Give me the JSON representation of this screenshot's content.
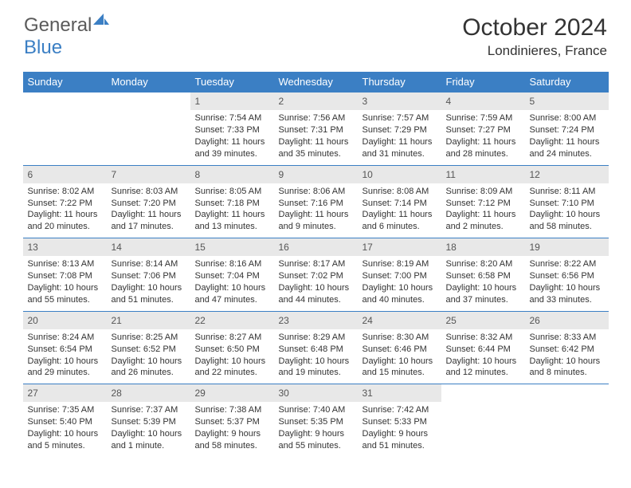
{
  "logo": {
    "part1": "General",
    "part2": "Blue"
  },
  "title": "October 2024",
  "location": "Londinieres, France",
  "colors": {
    "header_bg": "#3b7fc4",
    "header_text": "#ffffff",
    "daynum_bg": "#e8e8e8",
    "daynum_text": "#555555",
    "body_text": "#333333",
    "border": "#3b7fc4",
    "logo_gray": "#5a5a5a",
    "logo_blue": "#3b7fc4"
  },
  "day_headers": [
    "Sunday",
    "Monday",
    "Tuesday",
    "Wednesday",
    "Thursday",
    "Friday",
    "Saturday"
  ],
  "weeks": [
    [
      {
        "empty": true
      },
      {
        "empty": true
      },
      {
        "num": "1",
        "sunrise": "Sunrise: 7:54 AM",
        "sunset": "Sunset: 7:33 PM",
        "daylight1": "Daylight: 11 hours",
        "daylight2": "and 39 minutes."
      },
      {
        "num": "2",
        "sunrise": "Sunrise: 7:56 AM",
        "sunset": "Sunset: 7:31 PM",
        "daylight1": "Daylight: 11 hours",
        "daylight2": "and 35 minutes."
      },
      {
        "num": "3",
        "sunrise": "Sunrise: 7:57 AM",
        "sunset": "Sunset: 7:29 PM",
        "daylight1": "Daylight: 11 hours",
        "daylight2": "and 31 minutes."
      },
      {
        "num": "4",
        "sunrise": "Sunrise: 7:59 AM",
        "sunset": "Sunset: 7:27 PM",
        "daylight1": "Daylight: 11 hours",
        "daylight2": "and 28 minutes."
      },
      {
        "num": "5",
        "sunrise": "Sunrise: 8:00 AM",
        "sunset": "Sunset: 7:24 PM",
        "daylight1": "Daylight: 11 hours",
        "daylight2": "and 24 minutes."
      }
    ],
    [
      {
        "num": "6",
        "sunrise": "Sunrise: 8:02 AM",
        "sunset": "Sunset: 7:22 PM",
        "daylight1": "Daylight: 11 hours",
        "daylight2": "and 20 minutes."
      },
      {
        "num": "7",
        "sunrise": "Sunrise: 8:03 AM",
        "sunset": "Sunset: 7:20 PM",
        "daylight1": "Daylight: 11 hours",
        "daylight2": "and 17 minutes."
      },
      {
        "num": "8",
        "sunrise": "Sunrise: 8:05 AM",
        "sunset": "Sunset: 7:18 PM",
        "daylight1": "Daylight: 11 hours",
        "daylight2": "and 13 minutes."
      },
      {
        "num": "9",
        "sunrise": "Sunrise: 8:06 AM",
        "sunset": "Sunset: 7:16 PM",
        "daylight1": "Daylight: 11 hours",
        "daylight2": "and 9 minutes."
      },
      {
        "num": "10",
        "sunrise": "Sunrise: 8:08 AM",
        "sunset": "Sunset: 7:14 PM",
        "daylight1": "Daylight: 11 hours",
        "daylight2": "and 6 minutes."
      },
      {
        "num": "11",
        "sunrise": "Sunrise: 8:09 AM",
        "sunset": "Sunset: 7:12 PM",
        "daylight1": "Daylight: 11 hours",
        "daylight2": "and 2 minutes."
      },
      {
        "num": "12",
        "sunrise": "Sunrise: 8:11 AM",
        "sunset": "Sunset: 7:10 PM",
        "daylight1": "Daylight: 10 hours",
        "daylight2": "and 58 minutes."
      }
    ],
    [
      {
        "num": "13",
        "sunrise": "Sunrise: 8:13 AM",
        "sunset": "Sunset: 7:08 PM",
        "daylight1": "Daylight: 10 hours",
        "daylight2": "and 55 minutes."
      },
      {
        "num": "14",
        "sunrise": "Sunrise: 8:14 AM",
        "sunset": "Sunset: 7:06 PM",
        "daylight1": "Daylight: 10 hours",
        "daylight2": "and 51 minutes."
      },
      {
        "num": "15",
        "sunrise": "Sunrise: 8:16 AM",
        "sunset": "Sunset: 7:04 PM",
        "daylight1": "Daylight: 10 hours",
        "daylight2": "and 47 minutes."
      },
      {
        "num": "16",
        "sunrise": "Sunrise: 8:17 AM",
        "sunset": "Sunset: 7:02 PM",
        "daylight1": "Daylight: 10 hours",
        "daylight2": "and 44 minutes."
      },
      {
        "num": "17",
        "sunrise": "Sunrise: 8:19 AM",
        "sunset": "Sunset: 7:00 PM",
        "daylight1": "Daylight: 10 hours",
        "daylight2": "and 40 minutes."
      },
      {
        "num": "18",
        "sunrise": "Sunrise: 8:20 AM",
        "sunset": "Sunset: 6:58 PM",
        "daylight1": "Daylight: 10 hours",
        "daylight2": "and 37 minutes."
      },
      {
        "num": "19",
        "sunrise": "Sunrise: 8:22 AM",
        "sunset": "Sunset: 6:56 PM",
        "daylight1": "Daylight: 10 hours",
        "daylight2": "and 33 minutes."
      }
    ],
    [
      {
        "num": "20",
        "sunrise": "Sunrise: 8:24 AM",
        "sunset": "Sunset: 6:54 PM",
        "daylight1": "Daylight: 10 hours",
        "daylight2": "and 29 minutes."
      },
      {
        "num": "21",
        "sunrise": "Sunrise: 8:25 AM",
        "sunset": "Sunset: 6:52 PM",
        "daylight1": "Daylight: 10 hours",
        "daylight2": "and 26 minutes."
      },
      {
        "num": "22",
        "sunrise": "Sunrise: 8:27 AM",
        "sunset": "Sunset: 6:50 PM",
        "daylight1": "Daylight: 10 hours",
        "daylight2": "and 22 minutes."
      },
      {
        "num": "23",
        "sunrise": "Sunrise: 8:29 AM",
        "sunset": "Sunset: 6:48 PM",
        "daylight1": "Daylight: 10 hours",
        "daylight2": "and 19 minutes."
      },
      {
        "num": "24",
        "sunrise": "Sunrise: 8:30 AM",
        "sunset": "Sunset: 6:46 PM",
        "daylight1": "Daylight: 10 hours",
        "daylight2": "and 15 minutes."
      },
      {
        "num": "25",
        "sunrise": "Sunrise: 8:32 AM",
        "sunset": "Sunset: 6:44 PM",
        "daylight1": "Daylight: 10 hours",
        "daylight2": "and 12 minutes."
      },
      {
        "num": "26",
        "sunrise": "Sunrise: 8:33 AM",
        "sunset": "Sunset: 6:42 PM",
        "daylight1": "Daylight: 10 hours",
        "daylight2": "and 8 minutes."
      }
    ],
    [
      {
        "num": "27",
        "sunrise": "Sunrise: 7:35 AM",
        "sunset": "Sunset: 5:40 PM",
        "daylight1": "Daylight: 10 hours",
        "daylight2": "and 5 minutes."
      },
      {
        "num": "28",
        "sunrise": "Sunrise: 7:37 AM",
        "sunset": "Sunset: 5:39 PM",
        "daylight1": "Daylight: 10 hours",
        "daylight2": "and 1 minute."
      },
      {
        "num": "29",
        "sunrise": "Sunrise: 7:38 AM",
        "sunset": "Sunset: 5:37 PM",
        "daylight1": "Daylight: 9 hours",
        "daylight2": "and 58 minutes."
      },
      {
        "num": "30",
        "sunrise": "Sunrise: 7:40 AM",
        "sunset": "Sunset: 5:35 PM",
        "daylight1": "Daylight: 9 hours",
        "daylight2": "and 55 minutes."
      },
      {
        "num": "31",
        "sunrise": "Sunrise: 7:42 AM",
        "sunset": "Sunset: 5:33 PM",
        "daylight1": "Daylight: 9 hours",
        "daylight2": "and 51 minutes."
      },
      {
        "empty": true
      },
      {
        "empty": true
      }
    ]
  ]
}
